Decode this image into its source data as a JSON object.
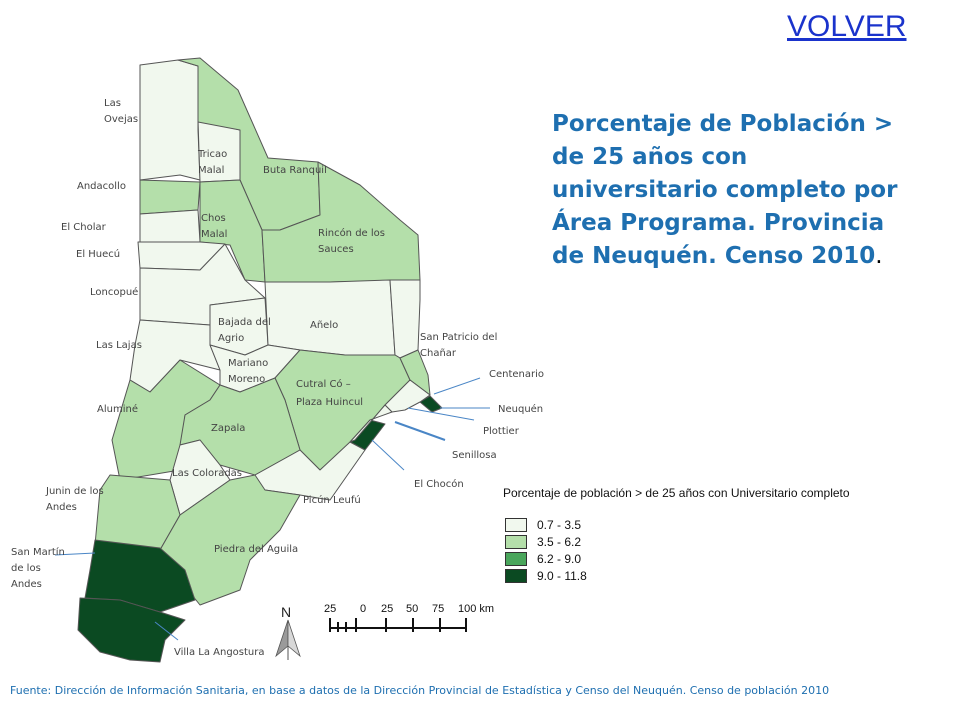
{
  "nav": {
    "back_label": "VOLVER"
  },
  "title": {
    "main": "Porcentaje de Población > de 25 años con universitario completo por Área Programa. Provincia de Neuquén. Censo 2010",
    "suffix": "."
  },
  "legend": {
    "title": "Porcentaje de población > de 25 años con Universitario completo",
    "classes": [
      {
        "label": "0.7 - 3.5",
        "color": "#f1f8ee"
      },
      {
        "label": "3.5 - 6.2",
        "color": "#b4dfaa"
      },
      {
        "label": "6.2 - 9.0",
        "color": "#4aa65c"
      },
      {
        "label": "9.0 - 11.8",
        "color": "#0b4a22"
      }
    ]
  },
  "regions": [
    {
      "name": "Las Ovejas",
      "class": 0
    },
    {
      "name": "Tricao Malal",
      "class": 0
    },
    {
      "name": "Buta Ranquil",
      "class": 1
    },
    {
      "name": "Andacollo",
      "class": 1
    },
    {
      "name": "El Cholar",
      "class": 0
    },
    {
      "name": "Chos Malal",
      "class": 0
    },
    {
      "name": "Rincón de los Sauces",
      "class": 1
    },
    {
      "name": "El Huecú",
      "class": 0
    },
    {
      "name": "Loncopué",
      "class": 0
    },
    {
      "name": "Bajada del Agrio",
      "class": 0
    },
    {
      "name": "Añelo",
      "class": 0
    },
    {
      "name": "San Patricio del Chañar",
      "class": 0
    },
    {
      "name": "Las Lajas",
      "class": 0
    },
    {
      "name": "Mariano Moreno",
      "class": 0
    },
    {
      "name": "Cutral Có – Plaza Huincul",
      "class": 1
    },
    {
      "name": "Centenario",
      "class": 1
    },
    {
      "name": "Neuquén",
      "class": 3
    },
    {
      "name": "Plottier",
      "class": 0
    },
    {
      "name": "Senillosa",
      "class": 0
    },
    {
      "name": "El Chocón",
      "class": 3
    },
    {
      "name": "Aluminé",
      "class": 1
    },
    {
      "name": "Zapala",
      "class": 1
    },
    {
      "name": "Las Coloradas",
      "class": 0
    },
    {
      "name": "Junin de los Andes",
      "class": 1
    },
    {
      "name": "Picún Leufú",
      "class": 0
    },
    {
      "name": "Piedra del Aguila",
      "class": 1
    },
    {
      "name": "San Martín de los Andes",
      "class": 3
    },
    {
      "name": "Villa La Angostura",
      "class": 3
    }
  ],
  "labels": {
    "las_ovejas": [
      "Las",
      "Ovejas"
    ],
    "tricao_malal": [
      "Tricao",
      "Malal"
    ],
    "buta_ranquil": "Buta Ranquil",
    "andacollo": "Andacollo",
    "chos_malal": [
      "Chos",
      "Malal"
    ],
    "el_cholar": "El Cholar",
    "rincon": [
      "Rincón de los",
      "Sauces"
    ],
    "el_huecu": "El Huecú",
    "loncopue": "Loncopué",
    "bajada": [
      "Bajada del",
      "Agrio"
    ],
    "anelo": "Añelo",
    "san_patricio": [
      "San Patricio del",
      "Chañar"
    ],
    "las_lajas": "Las Lajas",
    "mariano_moreno": [
      "Mariano",
      "Moreno"
    ],
    "cutral_co": [
      "Cutral Có –",
      "Plaza Huincul"
    ],
    "centenario": "Centenario",
    "alumine": "Aluminé",
    "neuquen": "Neuquén",
    "zapala": "Zapala",
    "plottier": "Plottier",
    "senillosa": "Senillosa",
    "las_coloradas": "Las Coloradas",
    "el_chocon": "El Chocón",
    "junin": [
      "Junin de los",
      "Andes"
    ],
    "picun_leufu": "Picún Leufú",
    "piedra_aguila": "Piedra del Aguila",
    "san_martin": [
      "San Martín",
      "de los",
      "Andes"
    ],
    "villa_angostura": "Villa La Angostura"
  },
  "north_arrow": {
    "label": "N"
  },
  "scale_bar": {
    "ticks": [
      "25",
      "0",
      "25",
      "50",
      "75",
      "100 km"
    ]
  },
  "source": "Fuente: Dirección de Información Sanitaria, en base a datos de la Dirección Provincial de Estadística y Censo del Neuquén. Censo de población 2010"
}
